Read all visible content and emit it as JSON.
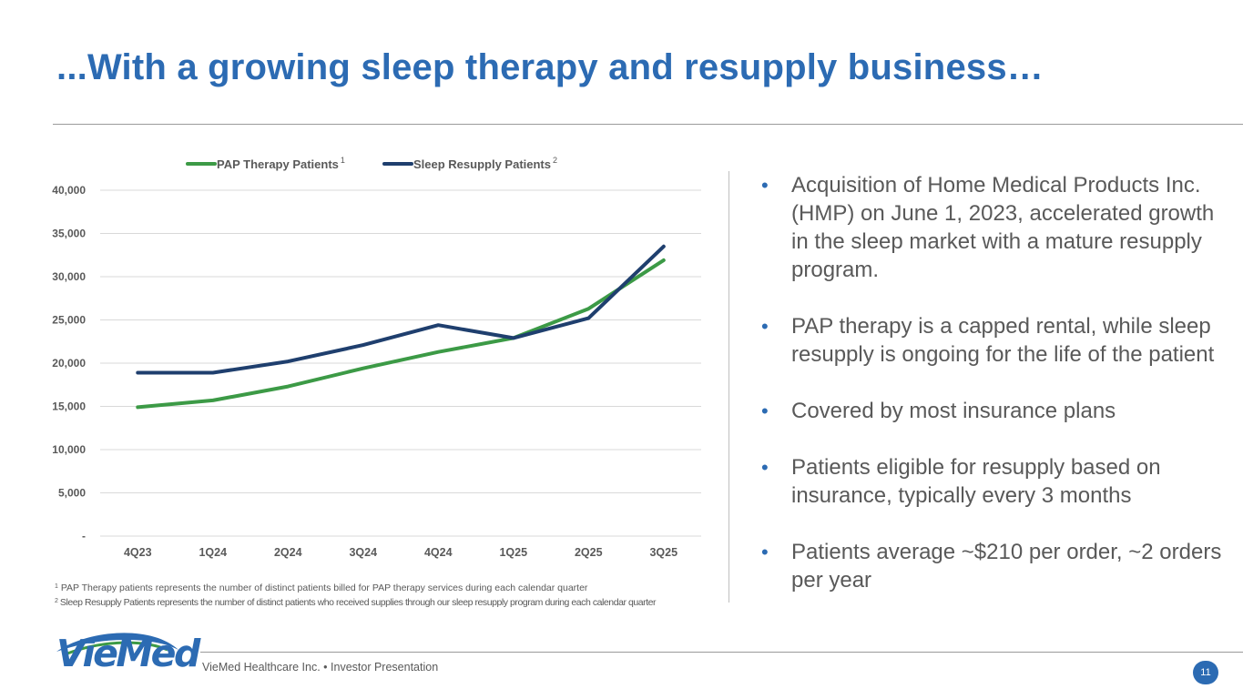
{
  "title": "...With a growing sleep therapy and resupply business…",
  "colors": {
    "accent": "#2c6bb3",
    "pap": "#3c9a46",
    "sleep": "#1f3f6e",
    "grid": "#d9d9d9",
    "text": "#595959"
  },
  "chart_data": {
    "type": "line",
    "categories": [
      "4Q23",
      "1Q24",
      "2Q24",
      "3Q24",
      "4Q24",
      "1Q25",
      "2Q25",
      "3Q25"
    ],
    "series": [
      {
        "name": "PAP Therapy Patients",
        "note": "1",
        "color": "#3c9a46",
        "values": [
          14900,
          15700,
          17300,
          19400,
          21300,
          22900,
          26300,
          31900
        ]
      },
      {
        "name": "Sleep Resupply Patients",
        "note": "2",
        "color": "#1f3f6e",
        "values": [
          18900,
          18900,
          20200,
          22100,
          24400,
          22900,
          25200,
          33500
        ]
      }
    ],
    "yticks": [
      0,
      5000,
      10000,
      15000,
      20000,
      25000,
      30000,
      35000,
      40000
    ],
    "ytick_labels": [
      "-",
      "5,000",
      "10,000",
      "15,000",
      "20,000",
      "25,000",
      "30,000",
      "35,000",
      "40,000"
    ],
    "ylim": [
      0,
      40000
    ],
    "legend": "top-center",
    "grid": true
  },
  "footnotes": {
    "fn1_mark": "1",
    "fn1": " PAP Therapy patients represents the number of distinct patients billed for PAP therapy services during each calendar quarter",
    "fn2_mark": "2",
    "fn2": " Sleep Resupply Patients represents the number of distinct patients who received supplies through our sleep resupply program during each calendar quarter"
  },
  "bullets": [
    "Acquisition of Home Medical Products Inc. (HMP) on June 1, 2023, accelerated growth in the sleep market with a mature resupply program.",
    "PAP therapy is a capped rental, while sleep resupply is ongoing for the life of the patient",
    "Covered by most insurance plans",
    "Patients eligible for resupply based on insurance, typically every 3 months",
    "Patients average ~$210 per order, ~2 orders per year"
  ],
  "bullet_symbol": "•",
  "footer": {
    "logo_text": "VieMed",
    "text": "VieMed Healthcare Inc.  •  Investor Presentation",
    "page_number": "11"
  }
}
